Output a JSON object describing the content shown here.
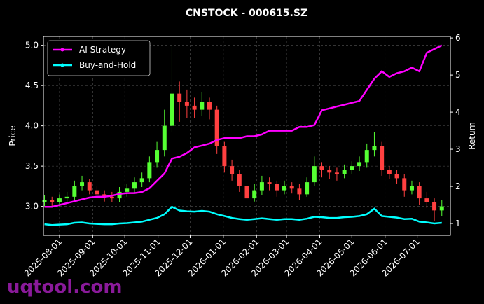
{
  "chart_data": {
    "type": "candlestick",
    "title": "CNSTOCK - 000615.SZ",
    "ylabel": "Price",
    "y2label": "Return",
    "watermark": "uqtool.com",
    "up_color": "#55ff33",
    "down_color": "#ff4040",
    "grid": true,
    "legend": "upper left",
    "x": [
      "2025-07-18",
      "2025-07-25",
      "2025-08-01",
      "2025-08-08",
      "2025-08-15",
      "2025-08-22",
      "2025-08-29",
      "2025-09-05",
      "2025-09-12",
      "2025-09-19",
      "2025-09-26",
      "2025-10-03",
      "2025-10-10",
      "2025-10-17",
      "2025-10-24",
      "2025-10-31",
      "2025-11-07",
      "2025-11-14",
      "2025-11-21",
      "2025-11-28",
      "2025-12-05",
      "2025-12-12",
      "2025-12-19",
      "2025-12-26",
      "2026-01-02",
      "2026-01-09",
      "2026-01-16",
      "2026-01-23",
      "2026-01-30",
      "2026-02-06",
      "2026-02-13",
      "2026-02-20",
      "2026-02-27",
      "2026-03-06",
      "2026-03-13",
      "2026-03-20",
      "2026-03-27",
      "2026-04-03",
      "2026-04-10",
      "2026-04-17",
      "2026-04-24",
      "2026-05-01",
      "2026-05-08",
      "2026-05-15",
      "2026-05-22",
      "2026-05-29",
      "2026-06-05",
      "2026-06-12",
      "2026-06-19",
      "2026-06-26",
      "2026-07-03",
      "2026-07-10",
      "2026-07-17",
      "2026-07-24"
    ],
    "open": [
      3.05,
      3.08,
      3.05,
      3.1,
      3.12,
      3.25,
      3.3,
      3.2,
      3.15,
      3.12,
      3.1,
      3.18,
      3.22,
      3.3,
      3.35,
      3.55,
      3.7,
      4.0,
      4.4,
      4.3,
      4.25,
      4.2,
      4.3,
      4.2,
      3.75,
      3.5,
      3.4,
      3.25,
      3.1,
      3.2,
      3.3,
      3.28,
      3.2,
      3.25,
      3.22,
      3.15,
      3.3,
      3.5,
      3.45,
      3.42,
      3.4,
      3.45,
      3.5,
      3.55,
      3.7,
      3.75,
      3.45,
      3.4,
      3.35,
      3.2,
      3.25,
      3.1,
      3.05,
      2.95
    ],
    "high": [
      3.14,
      3.12,
      3.15,
      3.18,
      3.32,
      3.38,
      3.34,
      3.25,
      3.2,
      3.18,
      3.24,
      3.28,
      3.36,
      3.42,
      3.62,
      3.8,
      4.2,
      5.0,
      4.55,
      4.45,
      4.35,
      4.42,
      4.35,
      4.25,
      3.8,
      3.58,
      3.45,
      3.3,
      3.28,
      3.38,
      3.36,
      3.32,
      3.32,
      3.3,
      3.28,
      3.36,
      3.62,
      3.55,
      3.5,
      3.48,
      3.52,
      3.56,
      3.62,
      3.78,
      3.92,
      3.8,
      3.5,
      3.45,
      3.4,
      3.32,
      3.3,
      3.18,
      3.1,
      3.08
    ],
    "low": [
      3.0,
      2.99,
      3.0,
      3.05,
      3.08,
      3.2,
      3.15,
      3.1,
      3.06,
      3.05,
      3.05,
      3.12,
      3.16,
      3.24,
      3.3,
      3.48,
      3.62,
      3.92,
      4.05,
      4.1,
      4.1,
      4.12,
      4.08,
      3.65,
      3.42,
      3.32,
      3.18,
      3.05,
      3.06,
      3.14,
      3.2,
      3.12,
      3.15,
      3.16,
      3.08,
      3.12,
      3.25,
      3.36,
      3.34,
      3.32,
      3.35,
      3.4,
      3.44,
      3.48,
      3.62,
      3.38,
      3.34,
      3.28,
      3.12,
      3.15,
      3.02,
      2.98,
      2.82,
      2.88
    ],
    "close": [
      3.08,
      3.05,
      3.1,
      3.12,
      3.25,
      3.3,
      3.2,
      3.15,
      3.12,
      3.1,
      3.18,
      3.22,
      3.3,
      3.35,
      3.55,
      3.7,
      4.0,
      4.4,
      4.3,
      4.25,
      4.2,
      4.3,
      4.2,
      3.75,
      3.5,
      3.4,
      3.25,
      3.1,
      3.2,
      3.3,
      3.28,
      3.2,
      3.25,
      3.22,
      3.15,
      3.3,
      3.5,
      3.45,
      3.42,
      3.4,
      3.45,
      3.5,
      3.55,
      3.7,
      3.75,
      3.45,
      3.4,
      3.35,
      3.2,
      3.25,
      3.1,
      3.05,
      2.95,
      3.0
    ],
    "series": [
      {
        "name": "AI Strategy",
        "color": "#ff00ff",
        "axis": "y2",
        "values": [
          1.45,
          1.45,
          1.5,
          1.55,
          1.6,
          1.65,
          1.7,
          1.72,
          1.72,
          1.75,
          1.8,
          1.82,
          1.82,
          1.85,
          1.95,
          2.15,
          2.35,
          2.75,
          2.8,
          2.9,
          3.05,
          3.1,
          3.15,
          3.25,
          3.3,
          3.3,
          3.3,
          3.35,
          3.35,
          3.4,
          3.5,
          3.5,
          3.5,
          3.5,
          3.6,
          3.6,
          3.65,
          4.05,
          4.1,
          4.15,
          4.2,
          4.25,
          4.3,
          4.6,
          4.9,
          5.1,
          4.95,
          5.05,
          5.1,
          5.2,
          5.1,
          5.6,
          5.7,
          5.8
        ]
      },
      {
        "name": "Buy-and-Hold",
        "color": "#00ffff",
        "axis": "y2",
        "values": [
          0.98,
          0.96,
          0.97,
          0.98,
          1.02,
          1.03,
          1.0,
          0.99,
          0.98,
          0.98,
          1.0,
          1.01,
          1.03,
          1.05,
          1.1,
          1.15,
          1.25,
          1.45,
          1.35,
          1.33,
          1.32,
          1.34,
          1.32,
          1.25,
          1.2,
          1.15,
          1.12,
          1.1,
          1.12,
          1.14,
          1.12,
          1.1,
          1.12,
          1.12,
          1.1,
          1.13,
          1.18,
          1.17,
          1.15,
          1.15,
          1.17,
          1.18,
          1.2,
          1.25,
          1.4,
          1.2,
          1.18,
          1.16,
          1.12,
          1.13,
          1.05,
          1.03,
          1.0,
          1.02
        ]
      }
    ],
    "xlim": [
      "2025-07-17",
      "2026-08-01"
    ],
    "xticks": [
      "2025-08-01",
      "2025-09-01",
      "2025-10-01",
      "2025-11-01",
      "2025-12-01",
      "2026-01-01",
      "2026-02-01",
      "2026-03-01",
      "2026-04-01",
      "2026-05-01",
      "2026-06-01",
      "2026-07-01"
    ],
    "ylim": [
      2.64,
      5.11
    ],
    "yticks": [
      {
        "value": 3,
        "label": "3.0"
      },
      3.5,
      {
        "value": 4,
        "label": "4.0"
      },
      4.5,
      {
        "value": 5,
        "label": "5.0"
      }
    ],
    "y2lim": [
      0.68,
      6.04
    ],
    "y2ticks": [
      1,
      2,
      3,
      4,
      5,
      6
    ]
  }
}
